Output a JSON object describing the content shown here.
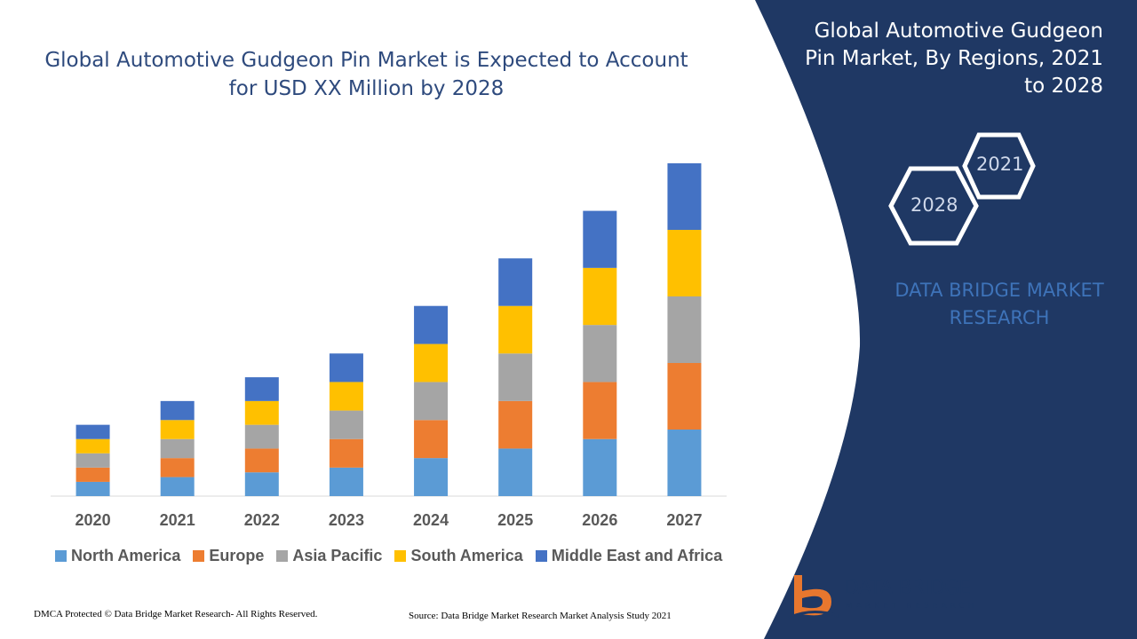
{
  "header": {
    "chart_title": "Global Automotive Gudgeon Pin Market is Expected to Account for USD XX Million by 2028",
    "panel_title": "Global Automotive Gudgeon Pin Market, By Regions, 2021 to 2028",
    "brand_text": "DATA BRIDGE MARKET RESEARCH",
    "hex_2021": "2021",
    "hex_2028": "2028"
  },
  "footer": {
    "copyright": "DMCA Protected © Data Bridge Market Research- All Rights Reserved.",
    "source": "Source: Data Bridge Market Research Market Analysis Study 2021"
  },
  "logo": {
    "name": "DATA BRIDGE",
    "sub": "MARKET RESEARCH"
  },
  "colors": {
    "panel": "#1f3864",
    "title": "#2e4a7d",
    "axis_label": "#595959"
  },
  "chart_data": {
    "type": "bar",
    "stacked": true,
    "categories": [
      "2020",
      "2021",
      "2022",
      "2023",
      "2024",
      "2025",
      "2026",
      "2027"
    ],
    "series": [
      {
        "name": "North America",
        "color": "#5b9bd5",
        "values": [
          3,
          4,
          5,
          6,
          8,
          10,
          12,
          14
        ]
      },
      {
        "name": "Europe",
        "color": "#ed7d31",
        "values": [
          3,
          4,
          5,
          6,
          8,
          10,
          12,
          14
        ]
      },
      {
        "name": "Asia Pacific",
        "color": "#a5a5a5",
        "values": [
          3,
          4,
          5,
          6,
          8,
          10,
          12,
          14
        ]
      },
      {
        "name": "South America",
        "color": "#ffc000",
        "values": [
          3,
          4,
          5,
          6,
          8,
          10,
          12,
          14
        ]
      },
      {
        "name": "Middle East and Africa",
        "color": "#4472c4",
        "values": [
          3,
          4,
          5,
          6,
          8,
          10,
          12,
          14
        ]
      }
    ],
    "ylim": [
      0,
      70
    ],
    "grid": false,
    "legend_position": "bottom"
  }
}
